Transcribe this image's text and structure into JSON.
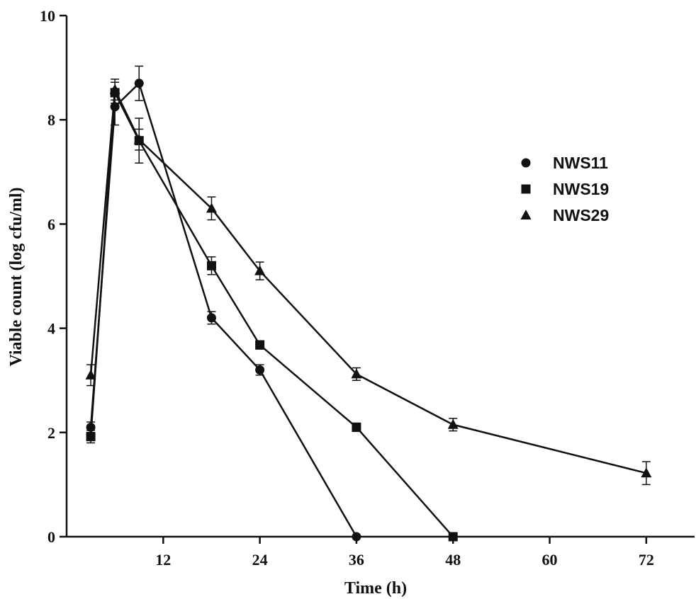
{
  "chart_data": {
    "type": "line",
    "title": "",
    "xlabel": "Time (h)",
    "ylabel": "Viable count (log cfu/ml)",
    "xlim": [
      0,
      78
    ],
    "ylim": [
      0,
      10
    ],
    "xticks": [
      12,
      24,
      36,
      48,
      60,
      72
    ],
    "yticks": [
      0,
      2,
      4,
      6,
      8,
      10
    ],
    "grid": false,
    "legend_position": "right",
    "series": [
      {
        "name": "NWS11",
        "marker": "circle",
        "x": [
          3,
          6,
          9,
          18,
          24,
          36
        ],
        "y": [
          2.1,
          8.25,
          8.7,
          4.2,
          3.2,
          0
        ],
        "err": [
          0.1,
          0.35,
          0.33,
          0.12,
          0.1,
          0
        ]
      },
      {
        "name": "NWS19",
        "marker": "square",
        "x": [
          3,
          6,
          9,
          18,
          24,
          36,
          48
        ],
        "y": [
          1.92,
          8.52,
          7.6,
          5.2,
          3.68,
          2.1,
          0
        ],
        "err": [
          0.12,
          0.2,
          0.43,
          0.17,
          0.08,
          0.08,
          0
        ]
      },
      {
        "name": "NWS29",
        "marker": "triangle",
        "x": [
          3,
          6,
          9,
          18,
          24,
          36,
          48,
          72
        ],
        "y": [
          3.1,
          8.58,
          7.62,
          6.3,
          5.1,
          3.12,
          2.15,
          1.22
        ],
        "err": [
          0.2,
          0.2,
          0.2,
          0.22,
          0.17,
          0.12,
          0.12,
          0.22
        ]
      }
    ]
  }
}
